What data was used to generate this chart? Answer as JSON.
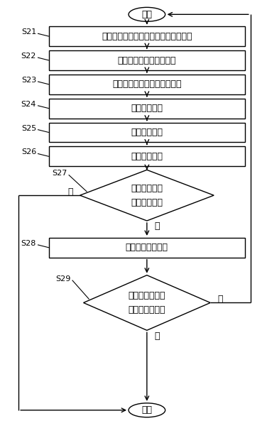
{
  "title": "开始",
  "end_label": "退出",
  "steps": [
    {
      "id": "S21",
      "label": "拍摄当前摄像机角度下的高速公路图像",
      "type": "rect"
    },
    {
      "id": "S22",
      "label": "获取道路的垂直边缘图像",
      "type": "rect"
    },
    {
      "id": "S23",
      "label": "获取道路的二值垂直边缘图像",
      "type": "rect"
    },
    {
      "id": "S24",
      "label": "检测边缘直线",
      "type": "rect"
    },
    {
      "id": "S25",
      "label": "合并边缘直线",
      "type": "rect"
    },
    {
      "id": "S26",
      "label": "去除干扰直线",
      "type": "rect"
    },
    {
      "id": "S27",
      "label1": "判断是否存在",
      "label2": "道路边缘直线",
      "type": "diamond"
    },
    {
      "id": "S28",
      "label": "旋转无人机摄像机",
      "type": "rect"
    },
    {
      "id": "S29",
      "label1": "判断无人机摄像",
      "label2": "机状态是否有效",
      "type": "diamond"
    }
  ],
  "bg_color": "#ffffff",
  "box_color": "#ffffff",
  "border_color": "#000000",
  "text_color": "#000000",
  "arrow_color": "#000000",
  "font_size": 9,
  "label_font_size": 8,
  "fig_w": 3.76,
  "fig_h": 6.17,
  "dpi": 100
}
